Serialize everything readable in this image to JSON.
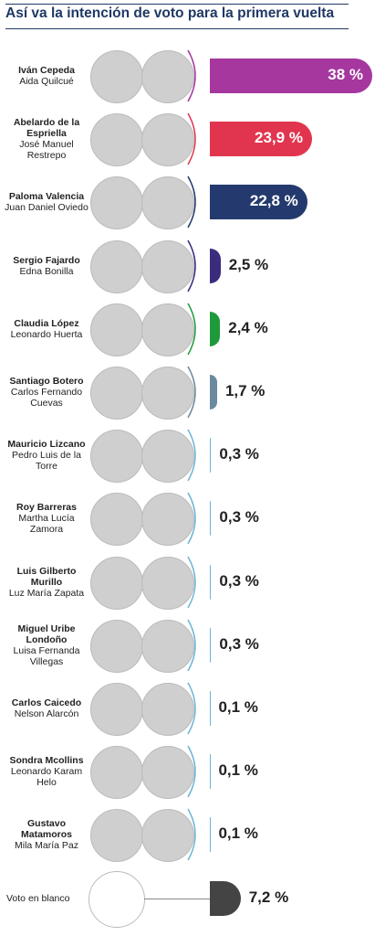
{
  "chart_data": {
    "type": "bar",
    "title": "Así va la intención de voto para la primera vuelta",
    "categories": [
      "Iván Cepeda",
      "Abelardo de la Espriella",
      "Paloma Valencia",
      "Sergio Fajardo",
      "Claudia López",
      "Santiago Botero",
      "Mauricio Lizcano",
      "Roy Barreras",
      "Luis Gilberto Murillo",
      "Miguel Uribe Londoño",
      "Carlos Caicedo",
      "Sondra Mcollins",
      "Gustavo Matamoros",
      "Voto en blanco"
    ],
    "running_mates": [
      "Aida Quilcué",
      "José Manuel Restrepo",
      "Juan Daniel Oviedo",
      "Edna Bonilla",
      "Leonardo Huerta",
      "Carlos Fernando Cuevas",
      "Pedro Luis de la Torre",
      "Martha Lucía Zamora",
      "Luz María Zapata",
      "Luisa Fernanda Villegas",
      "Nelson Alarcón",
      "Leonardo Karam Helo",
      "Mila María Paz",
      null
    ],
    "values": [
      38,
      23.9,
      22.8,
      2.5,
      2.4,
      1.7,
      0.3,
      0.3,
      0.3,
      0.3,
      0.1,
      0.1,
      0.1,
      7.2
    ],
    "value_labels": [
      "38 %",
      "23,9 %",
      "22,8 %",
      "2,5 %",
      "2,4 %",
      "1,7 %",
      "0,3 %",
      "0,3 %",
      "0,3 %",
      "0,3 %",
      "0,1 %",
      "0,1 %",
      "0,1 %",
      "7,2 %"
    ],
    "colors": [
      "#a5379f",
      "#e1354f",
      "#243a6e",
      "#3b2c7e",
      "#1f9a3b",
      "#6a8a9f",
      "#6cb5d4",
      "#6cb5d4",
      "#6cb5d4",
      "#6cb5d4",
      "#6cb5d4",
      "#6cb5d4",
      "#6cb5d4",
      "#444444"
    ]
  }
}
